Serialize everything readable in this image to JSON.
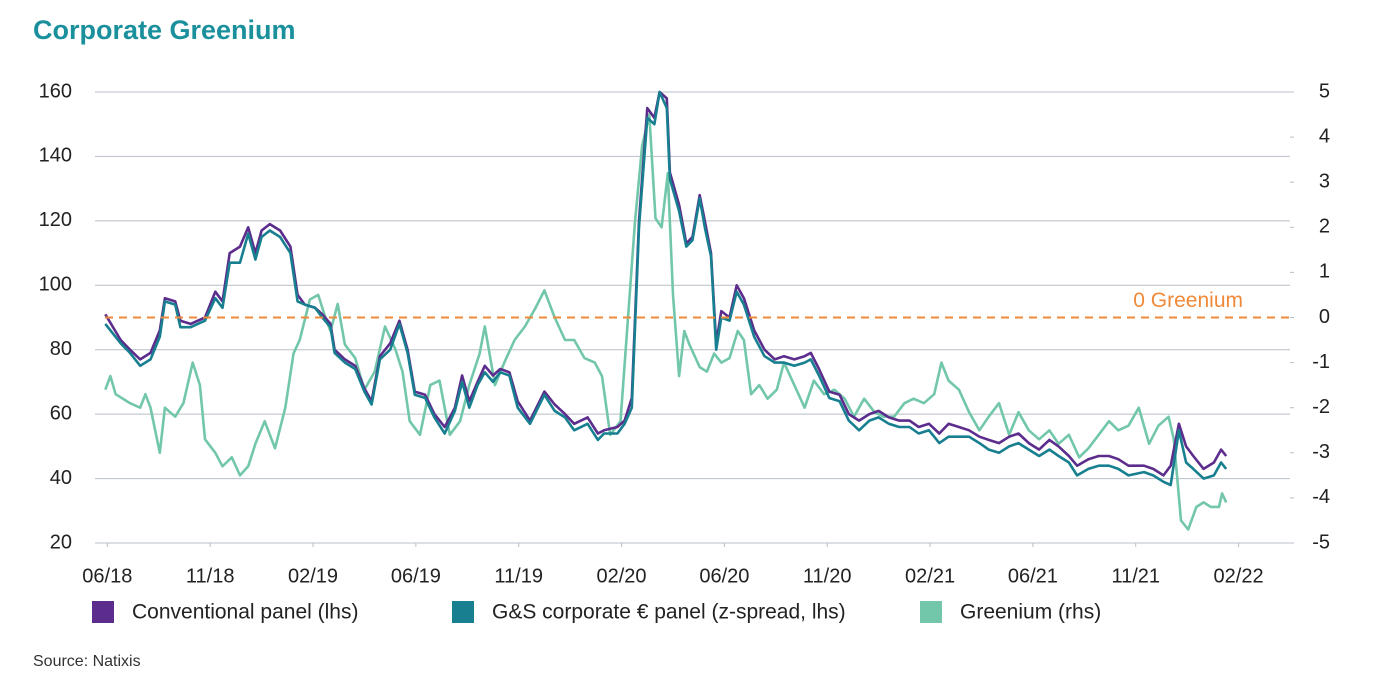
{
  "chart_data": {
    "type": "line",
    "title": "Corporate Greenium",
    "source": "Source: Natixis",
    "xlim": [
      -0.12,
      11.5
    ],
    "xticks": [
      {
        "value": 0,
        "label": "06/18"
      },
      {
        "value": 1,
        "label": "11/18"
      },
      {
        "value": 2,
        "label": "02/19"
      },
      {
        "value": 3,
        "label": "06/19"
      },
      {
        "value": 4,
        "label": "11/19"
      },
      {
        "value": 5,
        "label": "02/20"
      },
      {
        "value": 6,
        "label": "06/20"
      },
      {
        "value": 7,
        "label": "11/20"
      },
      {
        "value": 8,
        "label": "02/21"
      },
      {
        "value": 9,
        "label": "06/21"
      },
      {
        "value": 10,
        "label": "11/21"
      },
      {
        "value": 11,
        "label": "02/22"
      }
    ],
    "ylim": [
      20,
      160
    ],
    "yticks": [
      20,
      40,
      60,
      80,
      100,
      120,
      140,
      160
    ],
    "y2lim": [
      -5,
      5
    ],
    "y2ticks": [
      -5,
      -4,
      -3,
      -2,
      -1,
      0,
      1,
      2,
      3,
      4,
      5
    ],
    "grid": true,
    "reference_line": {
      "value": 0,
      "axis": "y2",
      "label": "0 Greenium",
      "color": "#ef8a3a"
    },
    "series": [
      {
        "name": "Conventional panel (lhs)",
        "color": "#5c2d8c",
        "axis": "y",
        "x": [
          -0.02,
          0.13,
          0.22,
          0.32,
          0.42,
          0.51,
          0.56,
          0.66,
          0.71,
          0.81,
          0.95,
          1.05,
          1.12,
          1.19,
          1.29,
          1.37,
          1.44,
          1.5,
          1.58,
          1.68,
          1.78,
          1.85,
          1.92,
          2.02,
          2.09,
          2.17,
          2.21,
          2.31,
          2.41,
          2.5,
          2.57,
          2.65,
          2.75,
          2.84,
          2.92,
          2.99,
          3.09,
          3.18,
          3.28,
          3.38,
          3.45,
          3.52,
          3.6,
          3.67,
          3.75,
          3.82,
          3.91,
          3.99,
          4.11,
          4.25,
          4.35,
          4.45,
          4.54,
          4.67,
          4.77,
          4.83,
          4.96,
          5.03,
          5.1,
          5.17,
          5.25,
          5.32,
          5.37,
          5.44,
          5.47,
          5.56,
          5.63,
          5.69,
          5.76,
          5.81,
          5.87,
          5.92,
          5.97,
          6.05,
          6.12,
          6.19,
          6.29,
          6.39,
          6.49,
          6.58,
          6.68,
          6.78,
          6.84,
          6.92,
          7.02,
          7.12,
          7.21,
          7.31,
          7.41,
          7.5,
          7.6,
          7.7,
          7.8,
          7.89,
          7.99,
          8.09,
          8.18,
          8.28,
          8.38,
          8.48,
          8.57,
          8.67,
          8.77,
          8.86,
          8.96,
          9.06,
          9.16,
          9.25,
          9.35,
          9.43,
          9.54,
          9.64,
          9.74,
          9.83,
          9.93,
          10.08,
          10.17,
          10.27,
          10.34,
          10.42,
          10.49,
          10.56,
          10.66,
          10.76,
          10.83,
          10.88
        ],
        "values": [
          91,
          83,
          80,
          77,
          79,
          86,
          96,
          95,
          89,
          88,
          90,
          98,
          95,
          110,
          112,
          118,
          110,
          117,
          119,
          117,
          112,
          97,
          94,
          93,
          91,
          88,
          80,
          77,
          75,
          68,
          64,
          78,
          82,
          89,
          80,
          67,
          66,
          60,
          56,
          62,
          72,
          64,
          70,
          75,
          72,
          74,
          73,
          64,
          58,
          67,
          63,
          60,
          57,
          59,
          54,
          55,
          56,
          58,
          65,
          120,
          155,
          152,
          160,
          158,
          135,
          125,
          113,
          115,
          128,
          120,
          110,
          82,
          92,
          90,
          100,
          96,
          86,
          80,
          77,
          78,
          77,
          78,
          79,
          74,
          67,
          66,
          60,
          58,
          60,
          61,
          59,
          58,
          58,
          56,
          57,
          54,
          57,
          56,
          55,
          53,
          52,
          51,
          53,
          54,
          51,
          49,
          52,
          50,
          47,
          44,
          46,
          47,
          47,
          46,
          44,
          44,
          43,
          41,
          44,
          57,
          50,
          47,
          43,
          45,
          49,
          47
        ]
      },
      {
        "name": "G&S corporate € panel (z-spread, lhs)",
        "color": "#177f8f",
        "axis": "y",
        "x": [
          -0.02,
          0.13,
          0.22,
          0.32,
          0.42,
          0.51,
          0.56,
          0.66,
          0.71,
          0.81,
          0.95,
          1.05,
          1.12,
          1.19,
          1.29,
          1.37,
          1.44,
          1.5,
          1.58,
          1.68,
          1.78,
          1.85,
          1.92,
          2.02,
          2.09,
          2.17,
          2.21,
          2.31,
          2.41,
          2.5,
          2.57,
          2.65,
          2.75,
          2.84,
          2.92,
          2.99,
          3.09,
          3.18,
          3.28,
          3.38,
          3.45,
          3.52,
          3.6,
          3.67,
          3.75,
          3.82,
          3.91,
          3.99,
          4.11,
          4.25,
          4.35,
          4.45,
          4.54,
          4.67,
          4.77,
          4.83,
          4.96,
          5.03,
          5.1,
          5.17,
          5.25,
          5.32,
          5.37,
          5.44,
          5.47,
          5.56,
          5.63,
          5.69,
          5.76,
          5.81,
          5.87,
          5.92,
          5.97,
          6.05,
          6.12,
          6.19,
          6.29,
          6.39,
          6.49,
          6.58,
          6.68,
          6.78,
          6.84,
          6.92,
          7.02,
          7.12,
          7.21,
          7.31,
          7.41,
          7.5,
          7.6,
          7.7,
          7.8,
          7.89,
          7.99,
          8.09,
          8.18,
          8.28,
          8.38,
          8.48,
          8.57,
          8.67,
          8.77,
          8.86,
          8.96,
          9.06,
          9.16,
          9.25,
          9.35,
          9.43,
          9.54,
          9.64,
          9.74,
          9.83,
          9.93,
          10.08,
          10.17,
          10.27,
          10.34,
          10.42,
          10.49,
          10.56,
          10.66,
          10.76,
          10.83,
          10.88
        ],
        "values": [
          88,
          82,
          79,
          75,
          77,
          84,
          95,
          94,
          87,
          87,
          89,
          96,
          93,
          107,
          107,
          116,
          108,
          115,
          117,
          115,
          110,
          95,
          94,
          93,
          90,
          87,
          79,
          76,
          74,
          67,
          63,
          77,
          80,
          88,
          79,
          66,
          65,
          59,
          54,
          61,
          70,
          62,
          69,
          73,
          70,
          73,
          72,
          62,
          57,
          66,
          61,
          59,
          55,
          57,
          52,
          54,
          54,
          57,
          62,
          118,
          152,
          150,
          160,
          155,
          133,
          123,
          112,
          114,
          127,
          118,
          109,
          80,
          90,
          89,
          98,
          94,
          84,
          78,
          76,
          76,
          75,
          76,
          77,
          72,
          65,
          64,
          58,
          55,
          58,
          59,
          57,
          56,
          56,
          54,
          55,
          51,
          53,
          53,
          53,
          51,
          49,
          48,
          50,
          51,
          49,
          47,
          49,
          47,
          45,
          41,
          43,
          44,
          44,
          43,
          41,
          42,
          41,
          39,
          38,
          55,
          45,
          43,
          40,
          41,
          45,
          43
        ]
      },
      {
        "name": "Greenium (rhs)",
        "color": "#72c7aa",
        "axis": "y2",
        "x": [
          -0.02,
          0.03,
          0.08,
          0.22,
          0.32,
          0.37,
          0.42,
          0.51,
          0.56,
          0.66,
          0.74,
          0.83,
          0.9,
          0.95,
          1.05,
          1.12,
          1.21,
          1.29,
          1.37,
          1.44,
          1.53,
          1.63,
          1.73,
          1.81,
          1.87,
          1.97,
          2.05,
          2.12,
          2.17,
          2.24,
          2.31,
          2.41,
          2.5,
          2.6,
          2.7,
          2.8,
          2.87,
          2.94,
          3.04,
          3.14,
          3.23,
          3.33,
          3.43,
          3.52,
          3.62,
          3.67,
          3.77,
          3.86,
          3.96,
          4.06,
          4.16,
          4.25,
          4.35,
          4.45,
          4.54,
          4.64,
          4.74,
          4.81,
          4.89,
          4.99,
          5.06,
          5.13,
          5.2,
          5.27,
          5.33,
          5.39,
          5.45,
          5.5,
          5.56,
          5.61,
          5.66,
          5.76,
          5.83,
          5.9,
          5.97,
          6.05,
          6.13,
          6.19,
          6.26,
          6.34,
          6.42,
          6.51,
          6.58,
          6.68,
          6.78,
          6.87,
          6.97,
          7.07,
          7.17,
          7.26,
          7.36,
          7.46,
          7.55,
          7.65,
          7.75,
          7.84,
          7.94,
          8.04,
          8.11,
          8.18,
          8.28,
          8.38,
          8.48,
          8.57,
          8.67,
          8.77,
          8.86,
          8.96,
          9.06,
          9.16,
          9.25,
          9.35,
          9.45,
          9.54,
          9.64,
          9.74,
          9.83,
          9.93,
          10.03,
          10.13,
          10.22,
          10.32,
          10.37,
          10.44,
          10.51,
          10.59,
          10.66,
          10.73,
          10.81,
          10.84,
          10.88
        ],
        "values": [
          -1.6,
          -1.3,
          -1.7,
          -1.9,
          -2.0,
          -1.7,
          -2.0,
          -3.0,
          -2.0,
          -2.2,
          -1.9,
          -1.0,
          -1.5,
          -2.7,
          -3.0,
          -3.3,
          -3.1,
          -3.5,
          -3.3,
          -2.8,
          -2.3,
          -2.9,
          -2.0,
          -0.8,
          -0.5,
          0.4,
          0.5,
          0.0,
          -0.3,
          0.3,
          -0.6,
          -0.9,
          -1.6,
          -1.2,
          -0.2,
          -0.7,
          -1.2,
          -2.3,
          -2.6,
          -1.5,
          -1.4,
          -2.6,
          -2.3,
          -1.5,
          -0.8,
          -0.2,
          -1.5,
          -1.0,
          -0.5,
          -0.2,
          0.2,
          0.6,
          0.0,
          -0.5,
          -0.5,
          -0.9,
          -1.0,
          -1.3,
          -2.6,
          -2.3,
          -0.1,
          2.1,
          3.8,
          4.5,
          2.2,
          2.0,
          3.2,
          0.5,
          -1.3,
          -0.3,
          -0.6,
          -1.1,
          -1.2,
          -0.8,
          -1.0,
          -0.9,
          -0.3,
          -0.5,
          -1.7,
          -1.5,
          -1.8,
          -1.6,
          -1.0,
          -1.5,
          -2.0,
          -1.4,
          -1.7,
          -1.6,
          -1.8,
          -2.2,
          -1.8,
          -2.1,
          -2.2,
          -2.2,
          -1.9,
          -1.8,
          -1.9,
          -1.7,
          -1.0,
          -1.4,
          -1.6,
          -2.1,
          -2.5,
          -2.2,
          -1.9,
          -2.6,
          -2.1,
          -2.5,
          -2.7,
          -2.5,
          -2.8,
          -2.6,
          -3.1,
          -2.9,
          -2.6,
          -2.3,
          -2.5,
          -2.4,
          -2.0,
          -2.8,
          -2.4,
          -2.2,
          -2.7,
          -4.5,
          -4.7,
          -4.2,
          -4.1,
          -4.2,
          -4.2,
          -3.9,
          -4.1
        ]
      }
    ]
  }
}
